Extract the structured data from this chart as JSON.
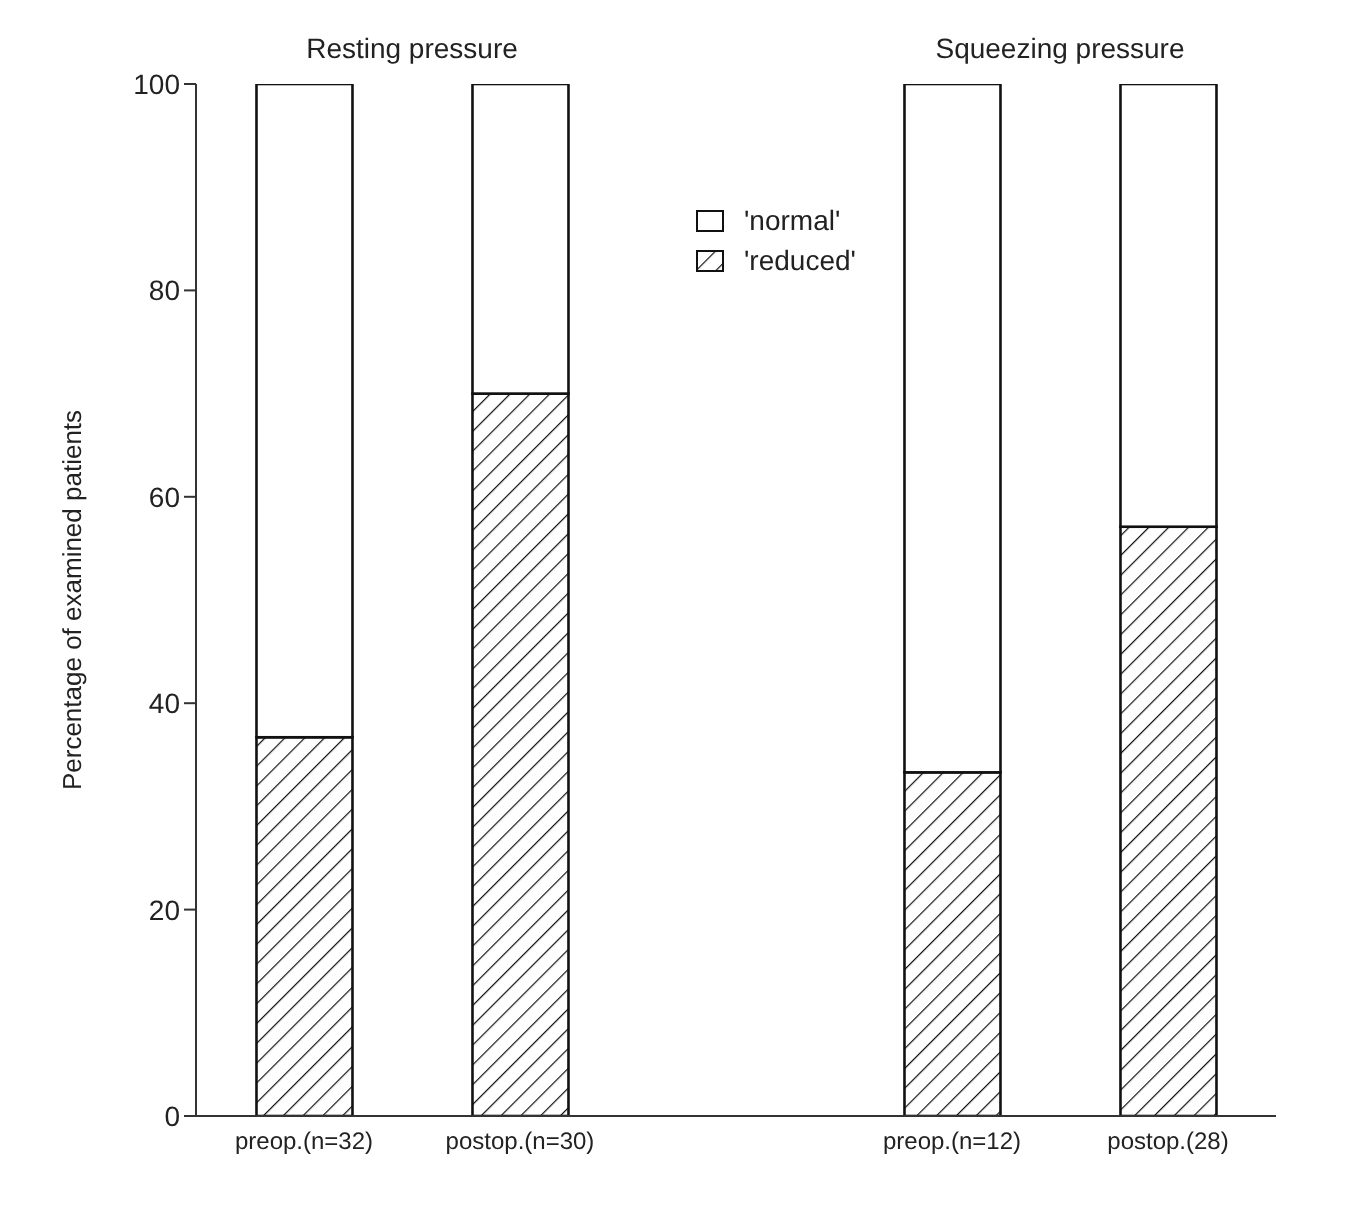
{
  "chart_data": {
    "type": "bar",
    "stacked": true,
    "categories": [
      "preop.(n=32)",
      "postop.(n=30)",
      null,
      "preop.(n=12)",
      "postop.(28)"
    ],
    "series": [
      {
        "name": "'reduced'",
        "color": "#111111",
        "values": [
          36.7,
          70,
          null,
          33.3,
          57.1
        ]
      },
      {
        "name": "'normal'",
        "color": "#ffffff",
        "values": [
          63.3,
          30,
          null,
          66.7,
          42.9
        ]
      }
    ],
    "ylabel": "Percentage of examined patients",
    "ylim": [
      0,
      100
    ],
    "yticks": [
      0,
      20,
      40,
      60,
      80,
      100
    ],
    "annotations": [
      "Resting pressure",
      "Squeezing pressure"
    ],
    "legend": "top",
    "grid": false
  }
}
